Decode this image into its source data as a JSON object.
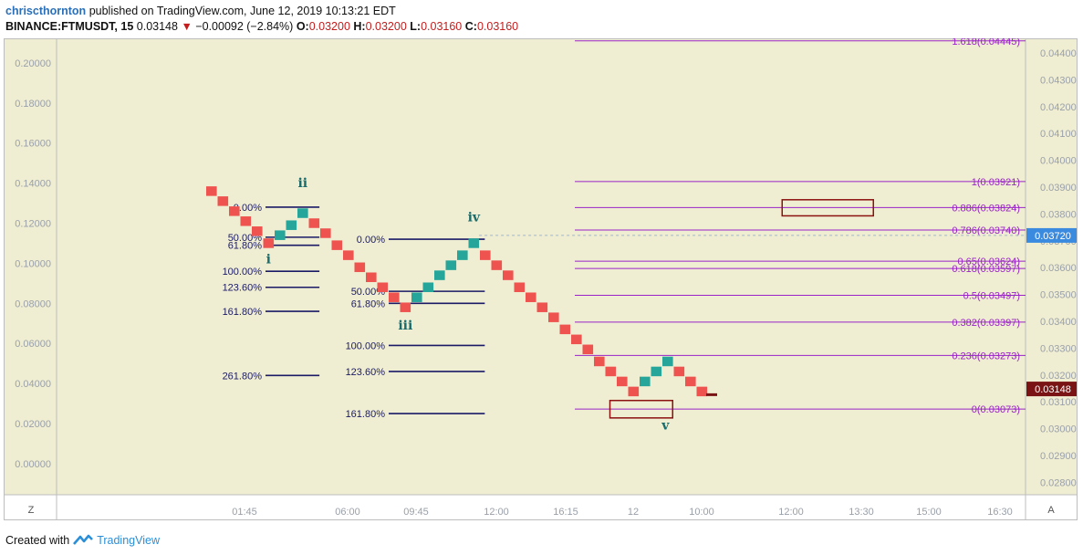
{
  "header": {
    "author": "chriscthornton",
    "published_text": "published on TradingView.com, June 12, 2019 10:13:21 EDT",
    "symbol": "BINANCE:FTMUSDT, 15",
    "last": "0.03148",
    "change": "−0.00092 (−2.84%)",
    "o_label": "O:",
    "o_value": "0.03200",
    "h_label": "H:",
    "h_value": "0.03200",
    "l_label": "L:",
    "l_value": "0.03160",
    "c_label": "C:",
    "c_value": "0.03160"
  },
  "footer": {
    "created_with": "Created with",
    "brand": "TradingView"
  },
  "colors": {
    "background": "#f0eed2",
    "up": "#26a69a",
    "down": "#ef5350",
    "fib_tool": "#1a1a66",
    "fib_right": "#9a22c8",
    "box": "#8b1010",
    "price_tag": "#3a8be0",
    "last_tag": "#7a1414",
    "wave_label": "#1a6c6c"
  },
  "chart_data": {
    "type": "renko",
    "left_axis": {
      "ticks": [
        "0.20000",
        "0.18000",
        "0.16000",
        "0.14000",
        "0.12000",
        "0.10000",
        "0.08000",
        "0.06000",
        "0.04000",
        "0.02000",
        "0.00000"
      ]
    },
    "right_axis": {
      "ticks": [
        "0.04400",
        "0.04300",
        "0.04200",
        "0.04100",
        "0.04000",
        "0.03900",
        "0.03800",
        "0.03700",
        "0.03600",
        "0.03500",
        "0.03400",
        "0.03300",
        "0.03200",
        "0.03100",
        "0.03000",
        "0.02900",
        "0.02800"
      ],
      "ylim": [
        0.0275,
        0.0445
      ]
    },
    "x_axis": {
      "ticks": [
        "01:45",
        "06:00",
        "09:45",
        "12:00",
        "16:15",
        "12",
        "10:00",
        "12:00",
        "13:30",
        "15:00",
        "16:30"
      ]
    },
    "bricks": [
      {
        "i": 0,
        "p": 0.136,
        "d": "down"
      },
      {
        "i": 1,
        "p": 0.131,
        "d": "down"
      },
      {
        "i": 2,
        "p": 0.126,
        "d": "down"
      },
      {
        "i": 3,
        "p": 0.121,
        "d": "down"
      },
      {
        "i": 4,
        "p": 0.116,
        "d": "down"
      },
      {
        "i": 5,
        "p": 0.11,
        "d": "down"
      },
      {
        "i": 6,
        "p": 0.114,
        "d": "up"
      },
      {
        "i": 7,
        "p": 0.119,
        "d": "up"
      },
      {
        "i": 8,
        "p": 0.125,
        "d": "up"
      },
      {
        "i": 9,
        "p": 0.12,
        "d": "down"
      },
      {
        "i": 10,
        "p": 0.115,
        "d": "down"
      },
      {
        "i": 11,
        "p": 0.109,
        "d": "down"
      },
      {
        "i": 12,
        "p": 0.104,
        "d": "down"
      },
      {
        "i": 13,
        "p": 0.098,
        "d": "down"
      },
      {
        "i": 14,
        "p": 0.093,
        "d": "down"
      },
      {
        "i": 15,
        "p": 0.088,
        "d": "down"
      },
      {
        "i": 16,
        "p": 0.083,
        "d": "down"
      },
      {
        "i": 17,
        "p": 0.078,
        "d": "down"
      },
      {
        "i": 18,
        "p": 0.083,
        "d": "up"
      },
      {
        "i": 19,
        "p": 0.088,
        "d": "up"
      },
      {
        "i": 20,
        "p": 0.094,
        "d": "up"
      },
      {
        "i": 21,
        "p": 0.099,
        "d": "up"
      },
      {
        "i": 22,
        "p": 0.104,
        "d": "up"
      },
      {
        "i": 23,
        "p": 0.11,
        "d": "up"
      },
      {
        "i": 24,
        "p": 0.104,
        "d": "down"
      },
      {
        "i": 25,
        "p": 0.099,
        "d": "down"
      },
      {
        "i": 26,
        "p": 0.094,
        "d": "down"
      },
      {
        "i": 27,
        "p": 0.088,
        "d": "down"
      },
      {
        "i": 28,
        "p": 0.083,
        "d": "down"
      },
      {
        "i": 29,
        "p": 0.078,
        "d": "down"
      },
      {
        "i": 30,
        "p": 0.073,
        "d": "down"
      },
      {
        "i": 31,
        "p": 0.067,
        "d": "down"
      },
      {
        "i": 32,
        "p": 0.062,
        "d": "down"
      },
      {
        "i": 33,
        "p": 0.057,
        "d": "down"
      },
      {
        "i": 34,
        "p": 0.051,
        "d": "down"
      },
      {
        "i": 35,
        "p": 0.046,
        "d": "down"
      },
      {
        "i": 36,
        "p": 0.041,
        "d": "down"
      },
      {
        "i": 37,
        "p": 0.036,
        "d": "down"
      },
      {
        "i": 38,
        "p": 0.041,
        "d": "up"
      },
      {
        "i": 39,
        "p": 0.046,
        "d": "up"
      },
      {
        "i": 40,
        "p": 0.051,
        "d": "up"
      },
      {
        "i": 41,
        "p": 0.046,
        "d": "down"
      },
      {
        "i": 42,
        "p": 0.041,
        "d": "down"
      },
      {
        "i": 43,
        "p": 0.036,
        "d": "down"
      }
    ],
    "fib_tools": [
      {
        "levels": [
          {
            "label": "0.00%",
            "p": 0.128
          },
          {
            "label": "50.00%",
            "p": 0.113
          },
          {
            "label": "61.80%",
            "p": 0.109
          },
          {
            "label": "100.00%",
            "p": 0.096
          },
          {
            "label": "123.60%",
            "p": 0.088
          },
          {
            "label": "161.80%",
            "p": 0.076
          },
          {
            "label": "261.80%",
            "p": 0.044
          }
        ],
        "x_from": 5.2,
        "x_to": 9.0
      },
      {
        "levels": [
          {
            "label": "0.00%",
            "p": 0.112
          },
          {
            "label": "50.00%",
            "p": 0.086
          },
          {
            "label": "61.80%",
            "p": 0.08
          },
          {
            "label": "100.00%",
            "p": 0.059
          },
          {
            "label": "123.60%",
            "p": 0.046
          },
          {
            "label": "161.80%",
            "p": 0.025
          }
        ],
        "x_from": 16.0,
        "x_to": 23.5
      }
    ],
    "fib_right": [
      {
        "label": "1.618(0.04445)",
        "p": 0.04445
      },
      {
        "label": "1(0.03921)",
        "p": 0.03921
      },
      {
        "label": "0.886(0.03824)",
        "p": 0.03824
      },
      {
        "label": "0.786(0.03740)",
        "p": 0.0374
      },
      {
        "label": "0.65(0.03624)",
        "p": 0.03624
      },
      {
        "label": "0.618(0.03597)",
        "p": 0.03597
      },
      {
        "label": "0.5(0.03497)",
        "p": 0.03497
      },
      {
        "label": "0.382(0.03397)",
        "p": 0.03397
      },
      {
        "label": "0.236(0.03273)",
        "p": 0.03273
      },
      {
        "label": "0(0.03073)",
        "p": 0.03073
      }
    ],
    "wave_labels": [
      {
        "text": "ii",
        "at": 8,
        "p": 0.138
      },
      {
        "text": "i",
        "at": 5,
        "p": 0.1
      },
      {
        "text": "iii",
        "at": 17,
        "p": 0.067
      },
      {
        "text": "iv",
        "at": 23,
        "p": 0.121
      },
      {
        "text": "v",
        "at": 39.8,
        "p": 0.017
      }
    ],
    "boxes": [
      {
        "from_i": 35.4,
        "to_i": 40.9,
        "p_top": 0.03105,
        "p_bottom": 0.0304
      },
      {
        "from_i": 50.5,
        "to_i": 58.5,
        "p_top": 0.03853,
        "p_bottom": 0.03793
      }
    ],
    "price_tags": [
      {
        "label": "0.03720",
        "p": 0.0372,
        "kind": "line"
      },
      {
        "label": "0.03148",
        "p": 0.03148,
        "kind": "last"
      }
    ]
  }
}
